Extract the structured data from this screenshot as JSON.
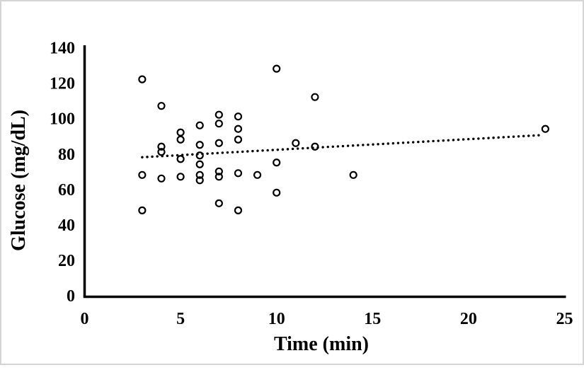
{
  "figure": {
    "background_color": "#ffffff",
    "border_color": "#d5d5d5"
  },
  "chart_data": {
    "type": "scatter",
    "title": "",
    "xlabel": "Time (min)",
    "ylabel": "Glucose (mg/dL)",
    "xlim": [
      0,
      25
    ],
    "ylim": [
      0,
      140
    ],
    "x_ticks": [
      0,
      5,
      10,
      15,
      20,
      25
    ],
    "y_ticks": [
      0,
      20,
      40,
      60,
      80,
      100,
      120,
      140
    ],
    "grid": false,
    "legend": false,
    "marker_style": "open-circle",
    "marker_color": "#000000",
    "axis_color": "#000000",
    "points": [
      [
        3,
        122
      ],
      [
        3,
        68
      ],
      [
        3,
        48
      ],
      [
        4,
        107
      ],
      [
        4,
        84
      ],
      [
        4,
        81
      ],
      [
        4,
        66
      ],
      [
        5,
        92
      ],
      [
        5,
        88
      ],
      [
        5,
        77
      ],
      [
        5,
        67
      ],
      [
        6,
        96
      ],
      [
        6,
        85
      ],
      [
        6,
        79
      ],
      [
        6,
        74
      ],
      [
        6,
        68
      ],
      [
        6,
        65
      ],
      [
        7,
        102
      ],
      [
        7,
        97
      ],
      [
        7,
        86
      ],
      [
        7,
        70
      ],
      [
        7,
        67
      ],
      [
        7,
        52
      ],
      [
        8,
        101
      ],
      [
        8,
        94
      ],
      [
        8,
        88
      ],
      [
        8,
        69
      ],
      [
        8,
        48
      ],
      [
        9,
        68
      ],
      [
        10,
        128
      ],
      [
        10,
        75
      ],
      [
        10,
        58
      ],
      [
        11,
        86
      ],
      [
        12,
        112
      ],
      [
        12,
        84
      ],
      [
        14,
        68
      ],
      [
        24,
        94
      ]
    ],
    "trendline": {
      "style": "dotted",
      "color": "#000000",
      "x_start": 3,
      "y_start": 78,
      "x_end": 23.8,
      "y_end": 90.5
    }
  }
}
